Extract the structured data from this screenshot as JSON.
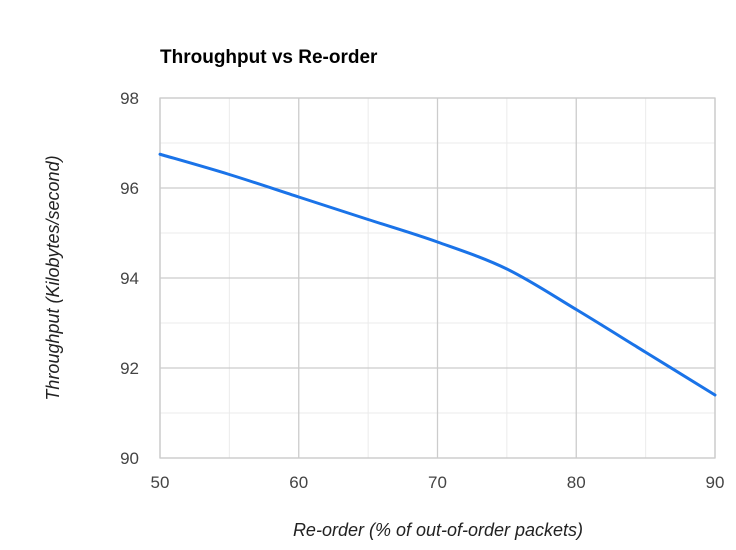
{
  "chart_data": {
    "type": "line",
    "title": "Throughput vs Re-order",
    "xlabel": "Re-order (% of out-of-order packets)",
    "ylabel": "Throughput (Kilobytes/second)",
    "xlim": [
      50,
      90
    ],
    "ylim": [
      90,
      98
    ],
    "x_ticks": [
      "50",
      "60",
      "70",
      "80",
      "90"
    ],
    "y_ticks": [
      "90",
      "92",
      "94",
      "96",
      "98"
    ],
    "grid": true,
    "series": [
      {
        "color": "#1a73e8",
        "x": [
          50,
          55,
          60,
          65,
          70,
          75,
          80,
          85,
          90
        ],
        "y": [
          96.75,
          96.3,
          95.8,
          95.3,
          94.8,
          94.2,
          93.3,
          92.35,
          91.4
        ]
      }
    ]
  }
}
